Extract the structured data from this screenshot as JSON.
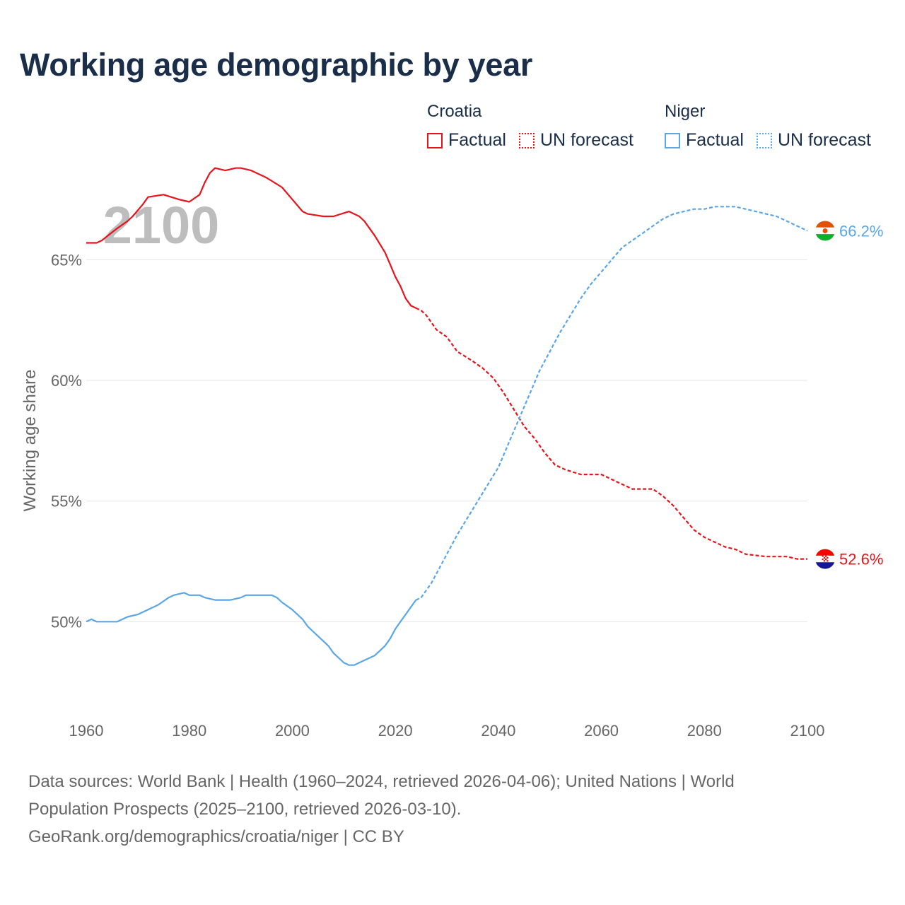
{
  "title": "Working age demographic by year",
  "colors": {
    "croatia": "#e8141c",
    "niger": "#5aa6e6",
    "year_watermark": "#bdbdbd",
    "grid": "#e6e6e6",
    "axis_text": "#666666"
  },
  "legend": [
    {
      "country": "Croatia",
      "factual": "Factual",
      "forecast": "UN forecast",
      "color": "#e8141c"
    },
    {
      "country": "Niger",
      "factual": "Factual",
      "forecast": "UN forecast",
      "color": "#5aa6e6"
    }
  ],
  "chart_data": {
    "type": "line",
    "title": "Working age demographic by year",
    "xlabel": "",
    "ylabel": "Working age share",
    "xlim": [
      1960,
      2100
    ],
    "ylim": [
      46.2,
      69.7
    ],
    "year_label": "2100",
    "x_ticks": [
      {
        "value": 1960,
        "label": "1960"
      },
      {
        "value": 1980,
        "label": "1980"
      },
      {
        "value": 2000,
        "label": "2000"
      },
      {
        "value": 2020,
        "label": "2020"
      },
      {
        "value": 2040,
        "label": "2040"
      },
      {
        "value": 2060,
        "label": "2060"
      },
      {
        "value": 2080,
        "label": "2080"
      },
      {
        "value": 2100,
        "label": "2100"
      }
    ],
    "y_ticks": [
      {
        "value": 50,
        "label": "50%"
      },
      {
        "value": 55,
        "label": "55%"
      },
      {
        "value": 60,
        "label": "60%"
      },
      {
        "value": 65,
        "label": "65%"
      }
    ],
    "factual_until": 2024,
    "series": [
      {
        "name": "Croatia",
        "color": "#e8141c",
        "end_label": "52.6%",
        "flag": "croatia-flag",
        "points": [
          [
            1960,
            65.7
          ],
          [
            1962,
            65.7
          ],
          [
            1963,
            65.8
          ],
          [
            1966,
            66.3
          ],
          [
            1968,
            66.6
          ],
          [
            1969,
            66.8
          ],
          [
            1971,
            67.3
          ],
          [
            1972,
            67.6
          ],
          [
            1975,
            67.7
          ],
          [
            1978,
            67.5
          ],
          [
            1980,
            67.4
          ],
          [
            1982,
            67.7
          ],
          [
            1983,
            68.2
          ],
          [
            1984,
            68.6
          ],
          [
            1985,
            68.8
          ],
          [
            1987,
            68.7
          ],
          [
            1989,
            68.8
          ],
          [
            1990,
            68.8
          ],
          [
            1992,
            68.7
          ],
          [
            1993,
            68.6
          ],
          [
            1995,
            68.4
          ],
          [
            1998,
            68.0
          ],
          [
            2000,
            67.5
          ],
          [
            2002,
            67.0
          ],
          [
            2003,
            66.9
          ],
          [
            2006,
            66.8
          ],
          [
            2008,
            66.8
          ],
          [
            2011,
            67.0
          ],
          [
            2013,
            66.8
          ],
          [
            2014,
            66.6
          ],
          [
            2016,
            66.0
          ],
          [
            2018,
            65.3
          ],
          [
            2019,
            64.8
          ],
          [
            2020,
            64.3
          ],
          [
            2021,
            63.9
          ],
          [
            2022,
            63.4
          ],
          [
            2023,
            63.1
          ],
          [
            2024,
            63.0
          ],
          [
            2025,
            62.9
          ],
          [
            2026,
            62.7
          ],
          [
            2027,
            62.4
          ],
          [
            2028,
            62.1
          ],
          [
            2030,
            61.8
          ],
          [
            2032,
            61.2
          ],
          [
            2035,
            60.8
          ],
          [
            2037,
            60.5
          ],
          [
            2039,
            60.1
          ],
          [
            2041,
            59.5
          ],
          [
            2043,
            58.8
          ],
          [
            2045,
            58.1
          ],
          [
            2047,
            57.6
          ],
          [
            2049,
            57.0
          ],
          [
            2051,
            56.5
          ],
          [
            2053,
            56.3
          ],
          [
            2056,
            56.1
          ],
          [
            2058,
            56.1
          ],
          [
            2060,
            56.1
          ],
          [
            2062,
            55.9
          ],
          [
            2064,
            55.7
          ],
          [
            2066,
            55.5
          ],
          [
            2070,
            55.5
          ],
          [
            2072,
            55.2
          ],
          [
            2074,
            54.8
          ],
          [
            2076,
            54.3
          ],
          [
            2078,
            53.8
          ],
          [
            2080,
            53.5
          ],
          [
            2082,
            53.3
          ],
          [
            2084,
            53.1
          ],
          [
            2086,
            53.0
          ],
          [
            2088,
            52.8
          ],
          [
            2092,
            52.7
          ],
          [
            2096,
            52.7
          ],
          [
            2098,
            52.6
          ],
          [
            2100,
            52.6
          ]
        ]
      },
      {
        "name": "Niger",
        "color": "#5aa6e6",
        "end_label": "66.2%",
        "flag": "niger-flag",
        "points": [
          [
            1960,
            50.0
          ],
          [
            1961,
            50.1
          ],
          [
            1962,
            50.0
          ],
          [
            1966,
            50.0
          ],
          [
            1968,
            50.2
          ],
          [
            1970,
            50.3
          ],
          [
            1972,
            50.5
          ],
          [
            1974,
            50.7
          ],
          [
            1976,
            51.0
          ],
          [
            1977,
            51.1
          ],
          [
            1979,
            51.2
          ],
          [
            1980,
            51.1
          ],
          [
            1982,
            51.1
          ],
          [
            1983,
            51.0
          ],
          [
            1985,
            50.9
          ],
          [
            1988,
            50.9
          ],
          [
            1990,
            51.0
          ],
          [
            1991,
            51.1
          ],
          [
            1996,
            51.1
          ],
          [
            1997,
            51.0
          ],
          [
            1998,
            50.8
          ],
          [
            2000,
            50.5
          ],
          [
            2002,
            50.1
          ],
          [
            2003,
            49.8
          ],
          [
            2004,
            49.6
          ],
          [
            2005,
            49.4
          ],
          [
            2007,
            49.0
          ],
          [
            2008,
            48.7
          ],
          [
            2009,
            48.5
          ],
          [
            2010,
            48.3
          ],
          [
            2011,
            48.2
          ],
          [
            2012,
            48.2
          ],
          [
            2013,
            48.3
          ],
          [
            2015,
            48.5
          ],
          [
            2016,
            48.6
          ],
          [
            2017,
            48.8
          ],
          [
            2018,
            49.0
          ],
          [
            2019,
            49.3
          ],
          [
            2020,
            49.7
          ],
          [
            2021,
            50.0
          ],
          [
            2022,
            50.3
          ],
          [
            2023,
            50.6
          ],
          [
            2024,
            50.9
          ],
          [
            2025,
            51.0
          ],
          [
            2026,
            51.3
          ],
          [
            2027,
            51.6
          ],
          [
            2028,
            52.0
          ],
          [
            2029,
            52.4
          ],
          [
            2030,
            52.8
          ],
          [
            2032,
            53.6
          ],
          [
            2034,
            54.3
          ],
          [
            2036,
            55.0
          ],
          [
            2038,
            55.7
          ],
          [
            2040,
            56.4
          ],
          [
            2042,
            57.4
          ],
          [
            2044,
            58.4
          ],
          [
            2046,
            59.4
          ],
          [
            2048,
            60.4
          ],
          [
            2050,
            61.2
          ],
          [
            2052,
            62.0
          ],
          [
            2054,
            62.7
          ],
          [
            2056,
            63.4
          ],
          [
            2058,
            64.0
          ],
          [
            2060,
            64.5
          ],
          [
            2062,
            65.0
          ],
          [
            2064,
            65.5
          ],
          [
            2066,
            65.8
          ],
          [
            2068,
            66.1
          ],
          [
            2070,
            66.4
          ],
          [
            2072,
            66.7
          ],
          [
            2074,
            66.9
          ],
          [
            2076,
            67.0
          ],
          [
            2078,
            67.1
          ],
          [
            2080,
            67.1
          ],
          [
            2082,
            67.2
          ],
          [
            2086,
            67.2
          ],
          [
            2088,
            67.1
          ],
          [
            2090,
            67.0
          ],
          [
            2092,
            66.9
          ],
          [
            2094,
            66.8
          ],
          [
            2096,
            66.6
          ],
          [
            2098,
            66.4
          ],
          [
            2100,
            66.2
          ]
        ]
      }
    ]
  },
  "footer": {
    "line1": "Data sources: World Bank | Health (1960–2024, retrieved 2026-04-06); United Nations | World",
    "line2": "Population Prospects (2025–2100, retrieved 2026-03-10).",
    "line3": "GeoRank.org/demographics/croatia/niger | CC BY"
  }
}
